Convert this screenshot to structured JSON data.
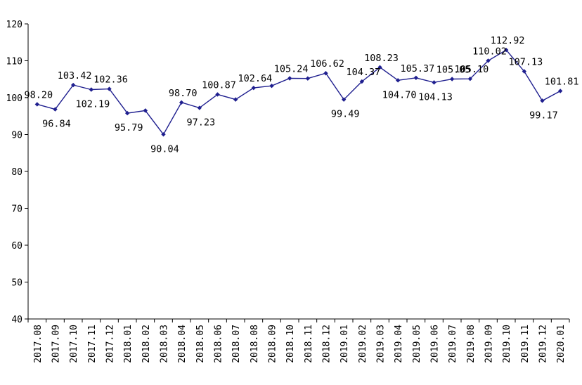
{
  "chart_data": {
    "type": "line",
    "categories": [
      "2017.08",
      "2017.09",
      "2017.10",
      "2017.11",
      "2017.12",
      "2018.01",
      "2018.02",
      "2018.03",
      "2018.04",
      "2018.05",
      "2018.06",
      "2018.07",
      "2018.08",
      "2018.09",
      "2018.10",
      "2018.11",
      "2018.12",
      "2019.01",
      "2019.02",
      "2019.03",
      "2019.04",
      "2019.05",
      "2019.06",
      "2019.07",
      "2019.08",
      "2019.09",
      "2019.10",
      "2019.11",
      "2019.12",
      "2020.01"
    ],
    "series": [
      {
        "values": [
          98.2,
          96.84,
          103.42,
          102.19,
          102.36,
          95.79,
          96.5,
          90.04,
          98.7,
          97.23,
          100.87,
          99.5,
          102.64,
          103.2,
          105.24,
          105.2,
          106.62,
          99.49,
          104.37,
          108.23,
          104.7,
          105.37,
          104.13,
          105.05,
          105.1,
          110.02,
          112.92,
          107.13,
          99.17,
          101.81
        ],
        "labels": [
          "98.20",
          "96.84",
          "103.42",
          "102.19",
          "102.36",
          "95.79",
          null,
          "90.04",
          "98.70",
          "97.23",
          "100.87",
          null,
          "102.64",
          null,
          "105.24",
          null,
          "106.62",
          "99.49",
          "104.37",
          "108.23",
          "104.70",
          "105.37",
          "104.13",
          "105.05",
          "105.10",
          "110.02",
          "112.92",
          "107.13",
          "99.17",
          "101.81"
        ],
        "color": "#1f1f8f"
      }
    ],
    "ylim": [
      40,
      120
    ],
    "yticks": [
      "40",
      "50",
      "60",
      "70",
      "80",
      "90",
      "100",
      "110",
      "120"
    ],
    "title": "",
    "xlabel": "",
    "ylabel": "",
    "grid": false,
    "legend": "none"
  }
}
